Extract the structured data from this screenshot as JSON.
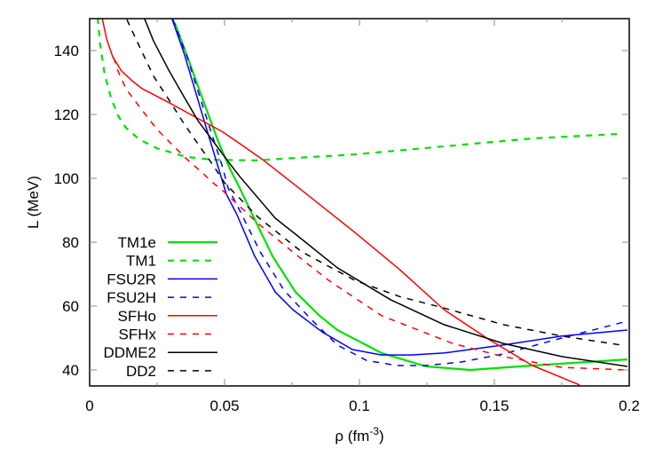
{
  "chart_data": {
    "type": "line",
    "title": "",
    "xlabel": "ρ (fm",
    "xlabel_sup": "-3",
    "xlabel_close": ")",
    "ylabel": "L (MeV)",
    "xlim": [
      0,
      0.2
    ],
    "ylim": [
      35,
      150
    ],
    "xticks": [
      0,
      0.05,
      0.1,
      0.15,
      0.2
    ],
    "xtick_labels": [
      "0",
      "0.05",
      "0.1",
      "0.15",
      "0.2"
    ],
    "xminor": [
      0.025,
      0.075,
      0.125,
      0.175
    ],
    "yticks": [
      40,
      60,
      80,
      100,
      120,
      140
    ],
    "ytick_labels": [
      "40",
      "60",
      "80",
      "100",
      "120",
      "140"
    ],
    "grid": false,
    "legend_position": "lower-left inside",
    "series": [
      {
        "name": "TM1e",
        "color": "#00e000",
        "dash": "solid",
        "width": 2.2,
        "x": [
          0.0316,
          0.0368,
          0.0424,
          0.048,
          0.0523,
          0.0556,
          0.0599,
          0.0678,
          0.0763,
          0.0852,
          0.0918,
          0.1082,
          0.1247,
          0.1411,
          0.1641,
          0.1993
        ],
        "y": [
          148.6,
          136.7,
          123.6,
          110.8,
          102.5,
          97,
          89.4,
          75.6,
          64.4,
          57,
          52.5,
          45.3,
          41.1,
          40,
          41.4,
          43.3
        ]
      },
      {
        "name": "TM1",
        "color": "#00e000",
        "dash": "dashed",
        "width": 2.2,
        "x": [
          0.003,
          0.0039,
          0.0056,
          0.0079,
          0.0105,
          0.0135,
          0.0184,
          0.025,
          0.0359,
          0.0457,
          0.0612,
          0.0984,
          0.1313,
          0.1641,
          0.196
        ],
        "y": [
          150.3,
          141.9,
          132.5,
          125.3,
          119.7,
          115.8,
          112.2,
          109.4,
          106.7,
          105.8,
          105.6,
          107.5,
          110,
          112.5,
          113.9
        ]
      },
      {
        "name": "FSU2R",
        "color": "#0000ff",
        "dash": "solid",
        "width": 1.5,
        "x": [
          0.0303,
          0.0349,
          0.0391,
          0.0434,
          0.0467,
          0.0507,
          0.0546,
          0.0612,
          0.0688,
          0.0753,
          0.0862,
          0.0974,
          0.1082,
          0.1191,
          0.1313,
          0.1533,
          0.175,
          0.1993
        ],
        "y": [
          150.5,
          139.4,
          127.5,
          115.3,
          106.1,
          95,
          88.6,
          75.6,
          64.4,
          58.9,
          51.9,
          46.4,
          44.7,
          44.7,
          45.3,
          47.8,
          50.6,
          52.5
        ]
      },
      {
        "name": "FSU2H",
        "color": "#0000ff",
        "dash": "dashed",
        "width": 1.5,
        "x": [
          0.0309,
          0.0359,
          0.0401,
          0.0447,
          0.049,
          0.0513,
          0.0556,
          0.0632,
          0.072,
          0.0819,
          0.0918,
          0.1026,
          0.1138,
          0.1247,
          0.1378,
          0.1533,
          0.175,
          0.198
        ],
        "y": [
          149.7,
          138.6,
          127.5,
          115.3,
          104.2,
          97,
          90,
          77,
          65,
          56,
          47.8,
          43,
          41.4,
          41.4,
          42.5,
          45,
          50,
          55
        ]
      },
      {
        "name": "SFHo",
        "color": "#ff0000",
        "dash": "solid",
        "width": 1.5,
        "x": [
          0.0046,
          0.0063,
          0.0086,
          0.0118,
          0.0161,
          0.0194,
          0.0303,
          0.0391,
          0.049,
          0.0566,
          0.0645,
          0.0796,
          0.0984,
          0.1148,
          0.1313,
          0.1477,
          0.1641,
          0.1816
        ],
        "y": [
          150.3,
          143.6,
          138,
          133.6,
          130.3,
          128.1,
          123.3,
          119.2,
          114.7,
          110.3,
          105.6,
          95.6,
          83,
          71.5,
          58.9,
          49.7,
          41.4,
          35.3
        ]
      },
      {
        "name": "SFHx",
        "color": "#ff0000",
        "dash": "dashed",
        "width": 1.5,
        "x": [
          0.0089,
          0.0105,
          0.0135,
          0.0184,
          0.025,
          0.0303,
          0.0359,
          0.0414,
          0.0457,
          0.049,
          0.0632,
          0.0786,
          0.0885,
          0.1082,
          0.1345,
          0.1533,
          0.175,
          0.1993
        ],
        "y": [
          137.8,
          133.6,
          128,
          122.5,
          115.3,
          110.8,
          106.1,
          102,
          98.6,
          96.4,
          85.3,
          74.7,
          68.1,
          57,
          48.3,
          44.2,
          40.8,
          40
        ]
      },
      {
        "name": "DDME2",
        "color": "#000000",
        "dash": "solid",
        "width": 1.5,
        "x": [
          0.0201,
          0.0237,
          0.0293,
          0.0349,
          0.0401,
          0.0457,
          0.0513,
          0.0556,
          0.0688,
          0.0763,
          0.0918,
          0.1115,
          0.1313,
          0.1533,
          0.175,
          0.1993
        ],
        "y": [
          150.5,
          143,
          133.9,
          125.6,
          118.1,
          111.7,
          105.3,
          100.6,
          87.5,
          82.5,
          72,
          62,
          54.2,
          48.3,
          44.2,
          41.1
        ]
      },
      {
        "name": "DD2",
        "color": "#000000",
        "dash": "dashed",
        "width": 1.5,
        "x": [
          0.0138,
          0.0184,
          0.0237,
          0.0293,
          0.0349,
          0.0401,
          0.0457,
          0.05,
          0.0622,
          0.0786,
          0.0984,
          0.1148,
          0.1313,
          0.1533,
          0.175,
          0.197
        ],
        "y": [
          149.7,
          141.4,
          132,
          124.7,
          117.2,
          110.8,
          104.2,
          98.6,
          88,
          77,
          68,
          63,
          59.4,
          54.2,
          50.6,
          47.8
        ]
      }
    ]
  }
}
